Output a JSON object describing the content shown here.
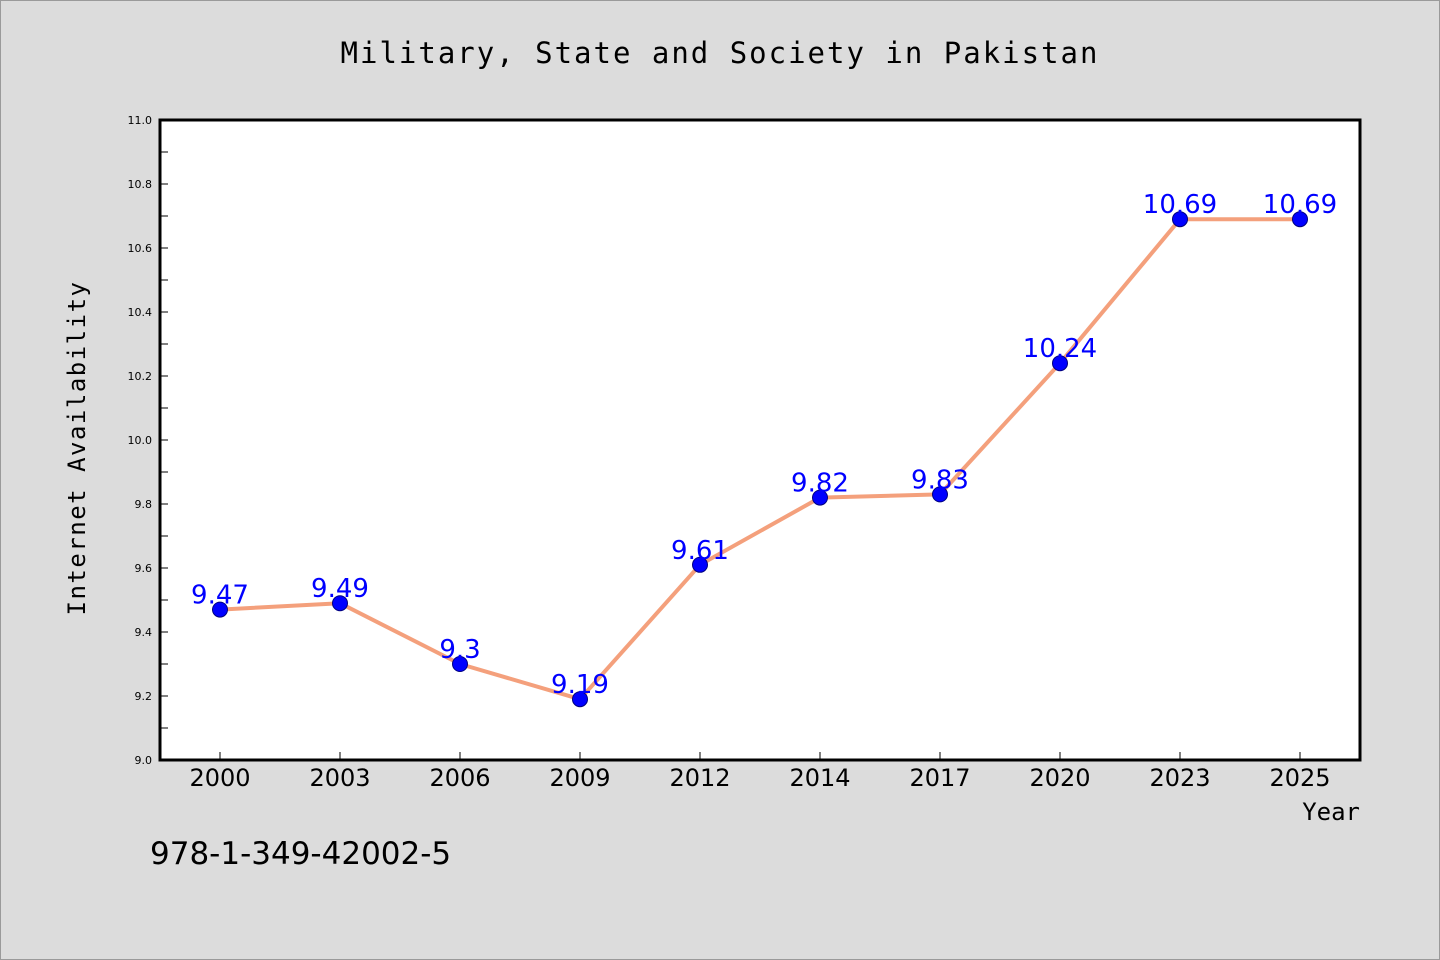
{
  "page": {
    "background": "#dcdcdc",
    "footer_text": "978-1-349-42002-5"
  },
  "chart_data": {
    "type": "line",
    "title": "Military, State and Society in Pakistan",
    "xlabel": "Year",
    "ylabel": "Internet Availability",
    "categories": [
      "2000",
      "2003",
      "2006",
      "2009",
      "2012",
      "2014",
      "2017",
      "2020",
      "2023",
      "2025"
    ],
    "values": [
      9.47,
      9.49,
      9.3,
      9.19,
      9.61,
      9.82,
      9.83,
      10.24,
      10.69,
      10.69
    ],
    "data_labels": [
      "9.47",
      "9.49",
      "9.3",
      "9.19",
      "9.61",
      "9.82",
      "9.83",
      "10.24",
      "10.69",
      "10.69"
    ],
    "ylim": [
      9.0,
      11.0
    ],
    "y_ticks": [
      "9.0",
      "9.2",
      "9.4",
      "9.6",
      "9.8",
      "10.0",
      "10.2",
      "10.4",
      "10.6",
      "10.8",
      "11.0"
    ],
    "grid": false,
    "legend": "none",
    "colors": {
      "line": "#f4a07c",
      "marker": "#0000ff",
      "data_label": "#0000ff",
      "plot_background": "#ffffff",
      "frame": "#000000"
    }
  }
}
